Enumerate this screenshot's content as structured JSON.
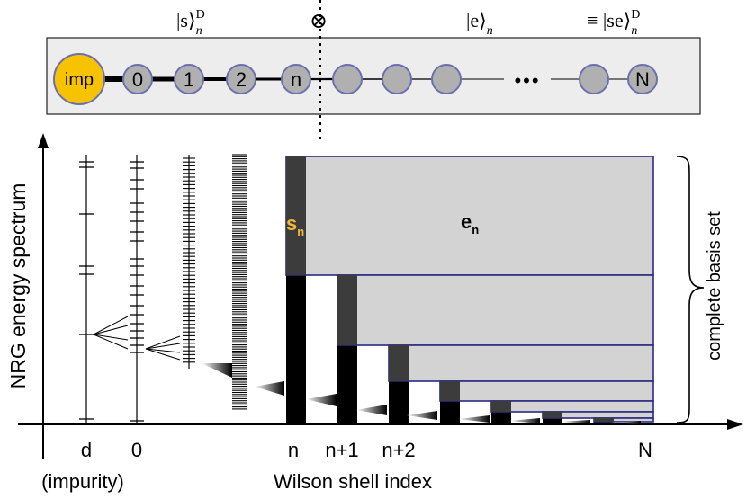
{
  "chain": {
    "impurity_label": "imp",
    "sites": [
      "0",
      "1",
      "2",
      "n",
      "",
      "",
      "",
      "",
      "N"
    ],
    "ellipsis": "•••",
    "top_labels": {
      "kept_state": "|s⟩",
      "kept_sub": "n",
      "kept_sup": "D",
      "tensor": "⊗",
      "env_state": "|e⟩",
      "env_sub": "n",
      "combined_prefix": "≡ |se⟩",
      "combined_sub": "n",
      "combined_sup": "D"
    }
  },
  "diagram": {
    "y_axis_label": "NRG energy spectrum",
    "x_axis_label": "Wilson shell index",
    "x_ticks": [
      "d",
      "0",
      "n",
      "n+1",
      "n+2",
      "N"
    ],
    "impurity_note": "(impurity)",
    "s_label": "s",
    "s_sub": "n",
    "e_label": "e",
    "e_sub": "n",
    "brace_label": "complete basis set"
  },
  "colors": {
    "impurity_fill": "#f7c200",
    "site_fill": "#b0b0b0",
    "site_stroke": "#6a6fb0",
    "panel_fill": "#ededed",
    "box_fill": "#d3d3d3",
    "box_stroke": "#2a2a80",
    "dark_strip": "#3c3c3c",
    "s_color": "#f0b73c"
  }
}
